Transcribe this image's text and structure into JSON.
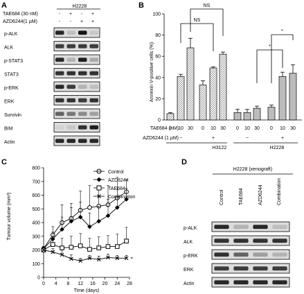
{
  "panels": {
    "A": "A",
    "B": "B",
    "C": "C",
    "D": "D"
  },
  "panel_a": {
    "cell_line": "H2228",
    "treatments": [
      {
        "label": "TAE684 (30 nM)",
        "signs": [
          "-",
          "+",
          "-",
          "+"
        ]
      },
      {
        "label": "AZD6244(1 µM)",
        "signs": [
          "-",
          "-",
          "+",
          "+"
        ]
      }
    ],
    "blots": [
      "p-ALK",
      "ALK",
      "p-STAT3",
      "STAT3",
      "p-ERK",
      "ERK",
      "Survivin",
      "BIM",
      "Actin"
    ]
  },
  "panel_b": {
    "groups": [
      "H3122",
      "H2228"
    ],
    "treat1_label": "TAE684 (nM)",
    "treat2_label": "AZD6244 (1 µM)",
    "treat1_ticks": [
      "0",
      "10",
      "30",
      "0",
      "10",
      "30",
      "0",
      "10",
      "30",
      "0",
      "10",
      "30"
    ],
    "treat2_signs": [
      "−",
      "+",
      "−",
      "+"
    ],
    "sig_labels": [
      "NS",
      "NS",
      "*",
      "*"
    ]
  },
  "panel_c": {
    "legend": [
      "Control",
      "AZD6244",
      "TAE684",
      "Combination"
    ],
    "asterisk": "*"
  },
  "panel_d": {
    "title": "H2228 (xenograft)",
    "columns": [
      "Control",
      "TAE684",
      "AZD6244",
      "Combination"
    ],
    "blots": [
      "p-ALK",
      "ALK",
      "p-ERK",
      "ERK",
      "Actin"
    ]
  },
  "chart_data": [
    {
      "type": "bar",
      "panel": "B",
      "ylabel": "Annexin V-positive cells (%)",
      "ylim": [
        0,
        100
      ],
      "yticks": [
        0,
        20,
        40,
        60,
        80,
        100
      ],
      "categories": [
        "H3122 TAE0",
        "H3122 TAE10",
        "H3122 TAE30",
        "H3122 TAE0+AZD",
        "H3122 TAE10+AZD",
        "H3122 TAE30+AZD",
        "H2228 TAE0",
        "H2228 TAE10",
        "H2228 TAE30",
        "H2228 TAE0+AZD",
        "H2228 TAE10+AZD",
        "H2228 TAE30+AZD"
      ],
      "values": [
        6,
        41,
        68,
        33,
        49,
        62,
        7,
        7,
        11,
        12,
        41,
        44
      ],
      "errors": [
        1,
        2,
        9,
        4,
        1,
        2,
        3,
        3,
        2,
        2,
        4,
        8
      ],
      "grid": false
    },
    {
      "type": "line",
      "panel": "C",
      "xlabel": "Time (days)",
      "ylabel": "Tumour volume (mm³)",
      "xlim": [
        0,
        28
      ],
      "ylim": [
        0,
        800
      ],
      "xticks": [
        0,
        4,
        8,
        12,
        16,
        20,
        24,
        28
      ],
      "yticks": [
        0,
        100,
        200,
        300,
        400,
        500,
        600,
        700,
        800
      ],
      "x": [
        0,
        3,
        6,
        9,
        12,
        15,
        18,
        21,
        24,
        27
      ],
      "series": [
        {
          "name": "Control",
          "values": [
            210,
            310,
            400,
            430,
            490,
            510,
            520,
            530,
            580,
            625
          ],
          "errors": [
            15,
            60,
            130,
            110,
            140,
            160,
            150,
            140,
            150,
            90
          ],
          "marker": "open-circle"
        },
        {
          "name": "AZD6244",
          "values": [
            210,
            280,
            350,
            410,
            440,
            370,
            410,
            450,
            510,
            570
          ],
          "errors": [
            15,
            50,
            90,
            100,
            110,
            100,
            110,
            120,
            130,
            80
          ],
          "marker": "filled-diamond"
        },
        {
          "name": "TAE684",
          "values": [
            200,
            240,
            215,
            220,
            230,
            205,
            215,
            225,
            225,
            265
          ],
          "errors": [
            15,
            40,
            70,
            80,
            90,
            80,
            80,
            80,
            90,
            100
          ],
          "marker": "open-square"
        },
        {
          "name": "Combination",
          "values": [
            200,
            185,
            165,
            135,
            120,
            140,
            130,
            145,
            140,
            140
          ],
          "errors": [
            15,
            25,
            35,
            30,
            20,
            20,
            25,
            25,
            20,
            20
          ],
          "marker": "x"
        }
      ]
    }
  ]
}
